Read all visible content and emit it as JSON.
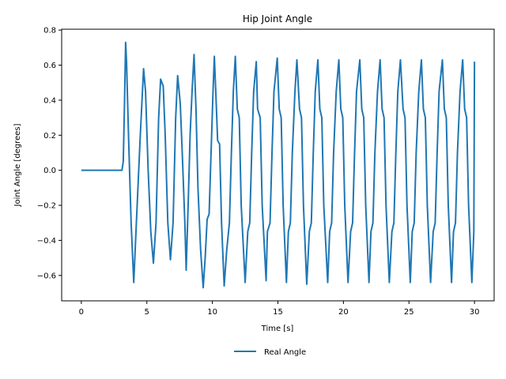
{
  "chart_data": {
    "type": "line",
    "title": "Hip Joint Angle",
    "xlabel": "Time [s]",
    "ylabel": "Joint Angle [degrees]",
    "xlim": [
      -1.5,
      31.5
    ],
    "ylim": [
      -0.745,
      0.805
    ],
    "xticks": [
      0,
      5,
      10,
      15,
      20,
      25,
      30
    ],
    "yticks": [
      -0.6,
      -0.4,
      -0.2,
      0.0,
      0.2,
      0.4,
      0.6,
      0.8
    ],
    "xtick_labels": [
      "0",
      "5",
      "10",
      "15",
      "20",
      "25",
      "30"
    ],
    "ytick_labels": [
      "−0.6",
      "−0.4",
      "−0.2",
      "0.0",
      "0.2",
      "0.4",
      "0.6",
      "0.8"
    ],
    "grid": false,
    "legend_position": "bottom-center",
    "series": [
      {
        "name": "Real Angle",
        "color": "#1f77b4",
        "points": [
          [
            0.0,
            0.0
          ],
          [
            3.1,
            0.0
          ],
          [
            3.2,
            0.05
          ],
          [
            3.3,
            0.4
          ],
          [
            3.38,
            0.73
          ],
          [
            3.45,
            0.62
          ],
          [
            3.6,
            0.2
          ],
          [
            3.8,
            -0.3
          ],
          [
            4.0,
            -0.64
          ],
          [
            4.2,
            -0.3
          ],
          [
            4.5,
            0.2
          ],
          [
            4.75,
            0.58
          ],
          [
            4.9,
            0.45
          ],
          [
            5.1,
            0.0
          ],
          [
            5.3,
            -0.35
          ],
          [
            5.5,
            -0.53
          ],
          [
            5.7,
            -0.3
          ],
          [
            5.9,
            0.3
          ],
          [
            6.05,
            0.52
          ],
          [
            6.25,
            0.48
          ],
          [
            6.4,
            0.2
          ],
          [
            6.6,
            -0.3
          ],
          [
            6.8,
            -0.51
          ],
          [
            7.0,
            -0.3
          ],
          [
            7.2,
            0.3
          ],
          [
            7.35,
            0.54
          ],
          [
            7.55,
            0.38
          ],
          [
            7.7,
            0.1
          ],
          [
            7.9,
            -0.3
          ],
          [
            8.0,
            -0.57
          ],
          [
            8.15,
            -0.2
          ],
          [
            8.3,
            0.2
          ],
          [
            8.45,
            0.45
          ],
          [
            8.6,
            0.66
          ],
          [
            8.75,
            0.35
          ],
          [
            8.9,
            -0.1
          ],
          [
            9.1,
            -0.45
          ],
          [
            9.3,
            -0.67
          ],
          [
            9.45,
            -0.5
          ],
          [
            9.6,
            -0.28
          ],
          [
            9.75,
            -0.25
          ],
          [
            9.9,
            0.1
          ],
          [
            10.05,
            0.45
          ],
          [
            10.15,
            0.65
          ],
          [
            10.3,
            0.37
          ],
          [
            10.4,
            0.17
          ],
          [
            10.55,
            0.15
          ],
          [
            10.7,
            -0.3
          ],
          [
            10.9,
            -0.66
          ],
          [
            11.1,
            -0.45
          ],
          [
            11.3,
            -0.3
          ],
          [
            11.45,
            0.1
          ],
          [
            11.6,
            0.45
          ],
          [
            11.75,
            0.65
          ],
          [
            11.9,
            0.35
          ],
          [
            12.05,
            0.3
          ],
          [
            12.2,
            -0.2
          ],
          [
            12.5,
            -0.64
          ],
          [
            12.7,
            -0.35
          ],
          [
            12.85,
            -0.3
          ],
          [
            13.0,
            0.1
          ],
          [
            13.15,
            0.45
          ],
          [
            13.35,
            0.62
          ],
          [
            13.45,
            0.35
          ],
          [
            13.65,
            0.3
          ],
          [
            13.8,
            -0.2
          ],
          [
            14.1,
            -0.63
          ],
          [
            14.2,
            -0.35
          ],
          [
            14.4,
            -0.3
          ],
          [
            14.55,
            0.1
          ],
          [
            14.7,
            0.45
          ],
          [
            14.95,
            0.64
          ],
          [
            15.1,
            0.35
          ],
          [
            15.25,
            0.3
          ],
          [
            15.4,
            -0.2
          ],
          [
            15.65,
            -0.64
          ],
          [
            15.8,
            -0.35
          ],
          [
            15.95,
            -0.3
          ],
          [
            16.1,
            0.1
          ],
          [
            16.3,
            0.45
          ],
          [
            16.45,
            0.63
          ],
          [
            16.65,
            0.35
          ],
          [
            16.8,
            0.3
          ],
          [
            16.95,
            -0.2
          ],
          [
            17.2,
            -0.65
          ],
          [
            17.4,
            -0.35
          ],
          [
            17.55,
            -0.3
          ],
          [
            17.7,
            0.1
          ],
          [
            17.85,
            0.45
          ],
          [
            18.05,
            0.63
          ],
          [
            18.2,
            0.35
          ],
          [
            18.35,
            0.3
          ],
          [
            18.5,
            -0.2
          ],
          [
            18.8,
            -0.64
          ],
          [
            18.95,
            -0.35
          ],
          [
            19.1,
            -0.3
          ],
          [
            19.25,
            0.1
          ],
          [
            19.45,
            0.45
          ],
          [
            19.65,
            0.63
          ],
          [
            19.8,
            0.35
          ],
          [
            19.95,
            0.3
          ],
          [
            20.1,
            -0.2
          ],
          [
            20.35,
            -0.64
          ],
          [
            20.55,
            -0.35
          ],
          [
            20.7,
            -0.3
          ],
          [
            20.85,
            0.1
          ],
          [
            21.0,
            0.45
          ],
          [
            21.25,
            0.63
          ],
          [
            21.4,
            0.35
          ],
          [
            21.55,
            0.3
          ],
          [
            21.7,
            -0.2
          ],
          [
            21.95,
            -0.64
          ],
          [
            22.1,
            -0.35
          ],
          [
            22.25,
            -0.3
          ],
          [
            22.4,
            0.1
          ],
          [
            22.6,
            0.45
          ],
          [
            22.8,
            0.63
          ],
          [
            22.95,
            0.35
          ],
          [
            23.1,
            0.3
          ],
          [
            23.25,
            -0.2
          ],
          [
            23.5,
            -0.64
          ],
          [
            23.7,
            -0.35
          ],
          [
            23.85,
            -0.3
          ],
          [
            24.0,
            0.1
          ],
          [
            24.15,
            0.45
          ],
          [
            24.35,
            0.63
          ],
          [
            24.55,
            0.35
          ],
          [
            24.7,
            0.3
          ],
          [
            24.85,
            -0.2
          ],
          [
            25.1,
            -0.64
          ],
          [
            25.25,
            -0.35
          ],
          [
            25.4,
            -0.3
          ],
          [
            25.55,
            0.1
          ],
          [
            25.75,
            0.45
          ],
          [
            25.95,
            0.63
          ],
          [
            26.1,
            0.35
          ],
          [
            26.25,
            0.3
          ],
          [
            26.4,
            -0.2
          ],
          [
            26.65,
            -0.64
          ],
          [
            26.85,
            -0.35
          ],
          [
            27.0,
            -0.3
          ],
          [
            27.15,
            0.1
          ],
          [
            27.3,
            0.45
          ],
          [
            27.55,
            0.63
          ],
          [
            27.7,
            0.35
          ],
          [
            27.85,
            0.3
          ],
          [
            28.0,
            -0.2
          ],
          [
            28.25,
            -0.64
          ],
          [
            28.4,
            -0.35
          ],
          [
            28.55,
            -0.3
          ],
          [
            28.7,
            0.1
          ],
          [
            28.9,
            0.45
          ],
          [
            29.1,
            0.63
          ],
          [
            29.25,
            0.35
          ],
          [
            29.4,
            0.3
          ],
          [
            29.55,
            -0.2
          ],
          [
            29.8,
            -0.64
          ],
          [
            29.95,
            -0.35
          ],
          [
            30.0,
            0.62
          ]
        ]
      }
    ]
  },
  "legend": {
    "items": [
      {
        "label": "Real Angle",
        "color": "#1f77b4"
      }
    ]
  }
}
